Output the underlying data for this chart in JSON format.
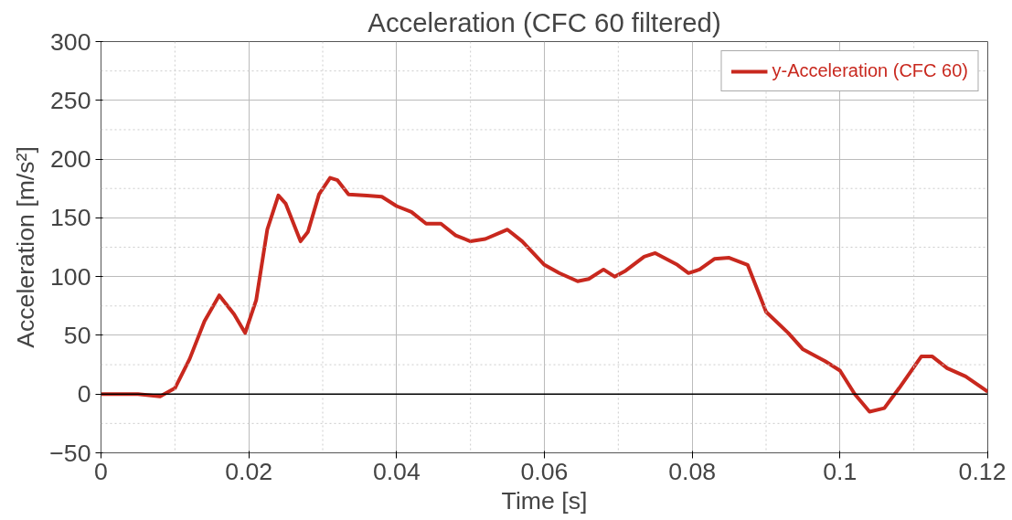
{
  "chart_data": {
    "type": "line",
    "title": "Acceleration (CFC 60 filtered)",
    "xlabel": "Time [s]",
    "ylabel": "Acceleration [m/s²]",
    "x": [
      0,
      0.005,
      0.008,
      0.01,
      0.012,
      0.014,
      0.016,
      0.018,
      0.0195,
      0.021,
      0.0225,
      0.024,
      0.025,
      0.027,
      0.028,
      0.0295,
      0.031,
      0.032,
      0.0335,
      0.036,
      0.038,
      0.04,
      0.042,
      0.044,
      0.046,
      0.048,
      0.05,
      0.052,
      0.055,
      0.057,
      0.06,
      0.062,
      0.0645,
      0.066,
      0.068,
      0.0695,
      0.071,
      0.0735,
      0.075,
      0.078,
      0.0795,
      0.081,
      0.083,
      0.085,
      0.0875,
      0.09,
      0.093,
      0.095,
      0.098,
      0.1,
      0.102,
      0.104,
      0.106,
      0.108,
      0.111,
      0.1125,
      0.1145,
      0.117,
      0.12
    ],
    "series": [
      {
        "name": "y-Acceleration (CFC 60)",
        "color": "#c8281e",
        "values": [
          0,
          0,
          -2,
          5,
          30,
          62,
          84,
          68,
          52,
          80,
          140,
          169,
          162,
          130,
          138,
          170,
          184,
          182,
          170,
          169,
          168,
          160,
          155,
          145,
          145,
          135,
          130,
          132,
          140,
          130,
          110,
          103,
          96,
          98,
          106,
          100,
          105,
          117,
          120,
          110,
          103,
          106,
          115,
          116,
          110,
          70,
          52,
          38,
          28,
          20,
          0,
          -15,
          -12,
          5,
          32,
          32,
          22,
          15,
          2
        ]
      }
    ],
    "xlim": [
      0,
      0.12
    ],
    "xticks": [
      0,
      {
        "value": 0.02,
        "label": "0.02"
      },
      {
        "value": 0.04,
        "label": "0.04"
      },
      {
        "value": 0.06,
        "label": "0.06"
      },
      {
        "value": 0.08,
        "label": "0.08"
      },
      {
        "value": 0.1,
        "label": "0.1"
      },
      {
        "value": 0.12,
        "label": "0.12"
      }
    ],
    "ylim": [
      -50,
      300
    ],
    "yticks": [
      -50,
      0,
      50,
      100,
      150,
      200,
      250,
      300
    ],
    "ref_lines": [
      {
        "axis": "y",
        "value": 0,
        "color": "#000000"
      }
    ],
    "grid": true,
    "legend": "top right",
    "line_style": "solid"
  }
}
